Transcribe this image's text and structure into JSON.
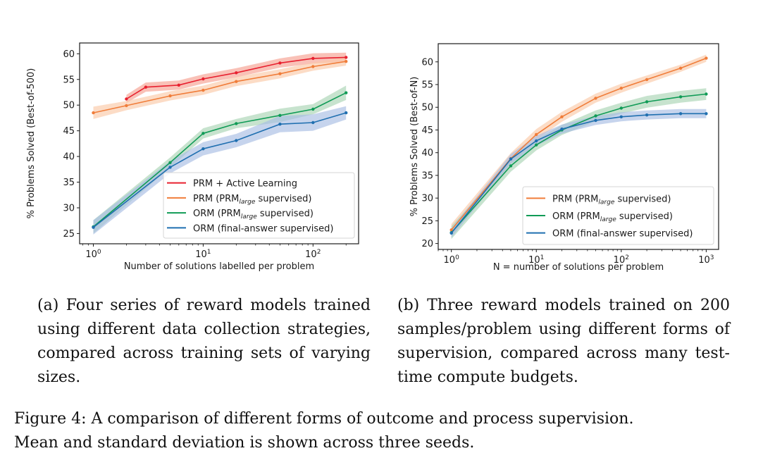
{
  "chart_data": [
    {
      "type": "line",
      "panel": "a",
      "xscale": "log",
      "xlabel": "Number of solutions labelled per problem",
      "ylabel": "% Problems Solved (Best-of-500)",
      "xlim": [
        0.75,
        260
      ],
      "ylim": [
        23,
        62.1
      ],
      "xticks": [
        {
          "value": 1,
          "base": "10",
          "exp": "0"
        },
        {
          "value": 10,
          "base": "10",
          "exp": "1"
        },
        {
          "value": 100,
          "base": "10",
          "exp": "2"
        }
      ],
      "yticks": [
        25,
        30,
        35,
        40,
        45,
        50,
        55,
        60
      ],
      "legend_position": "lower-right",
      "grid": false,
      "series": [
        {
          "name": "PRM + Active Learning",
          "label_main": "PRM + Active Learning",
          "label_sub": "",
          "label_tail": "",
          "color": "#e8202f",
          "band_color": "#f6a090",
          "x": [
            2,
            3,
            6,
            10,
            20,
            50,
            100,
            200
          ],
          "y": [
            51.2,
            53.5,
            53.9,
            55.1,
            56.3,
            58.2,
            59.1,
            59.3
          ],
          "std": [
            0.8,
            0.9,
            0.9,
            0.9,
            0.9,
            0.9,
            1.0,
            0.9
          ]
        },
        {
          "name": "PRM (PRM_large supervised)",
          "label_main": "PRM (PRM",
          "label_sub": "large",
          "label_tail": " supervised)",
          "color": "#f07d3a",
          "band_color": "#fbc9a8",
          "x": [
            1,
            2,
            5,
            10,
            20,
            50,
            100,
            200
          ],
          "y": [
            48.5,
            49.9,
            51.8,
            52.9,
            54.6,
            56.1,
            57.5,
            58.5
          ],
          "std": [
            1.2,
            0.9,
            0.9,
            0.9,
            0.9,
            0.9,
            0.8,
            0.8
          ]
        },
        {
          "name": "ORM (PRM_large supervised)",
          "label_main": "ORM (PRM",
          "label_sub": "large",
          "label_tail": " supervised)",
          "color": "#109b56",
          "band_color": "#a9d4b4",
          "x": [
            1,
            5,
            10,
            20,
            50,
            100,
            200
          ],
          "y": [
            26.3,
            38.8,
            44.5,
            46.4,
            48.0,
            49.2,
            52.4
          ],
          "std": [
            1.3,
            1.0,
            1.0,
            0.9,
            1.3,
            1.0,
            1.4
          ]
        },
        {
          "name": "ORM (final-answer supervised)",
          "label_main": "ORM (final-answer supervised)",
          "label_sub": "",
          "label_tail": "",
          "color": "#1f6fb0",
          "band_color": "#a7bde3",
          "x": [
            1,
            5,
            10,
            20,
            50,
            100,
            200
          ],
          "y": [
            26.2,
            37.9,
            41.5,
            43.1,
            46.3,
            46.6,
            48.5
          ],
          "std": [
            1.4,
            1.2,
            1.3,
            1.3,
            1.6,
            1.6,
            1.3
          ]
        }
      ]
    },
    {
      "type": "line",
      "panel": "b",
      "xscale": "log",
      "xlabel": "N = number of solutions per problem",
      "ylabel": "% Problems Solved (Best-of-N)",
      "xlim": [
        0.7,
        1400
      ],
      "ylim": [
        18.7,
        64.0
      ],
      "xticks": [
        {
          "value": 1,
          "base": "10",
          "exp": "0"
        },
        {
          "value": 10,
          "base": "10",
          "exp": "1"
        },
        {
          "value": 100,
          "base": "10",
          "exp": "2"
        },
        {
          "value": 1000,
          "base": "10",
          "exp": "3"
        }
      ],
      "yticks": [
        20,
        25,
        30,
        35,
        40,
        45,
        50,
        55,
        60
      ],
      "legend_position": "lower-right",
      "grid": false,
      "series": [
        {
          "name": "PRM (PRM_large supervised)",
          "label_main": "PRM (PRM",
          "label_sub": "large",
          "label_tail": " supervised)",
          "color": "#f07d3a",
          "band_color": "#fbc9a8",
          "x": [
            1,
            5,
            10,
            20,
            50,
            100,
            200,
            500,
            1000
          ],
          "y": [
            23.0,
            38.7,
            44.0,
            47.9,
            52.0,
            54.2,
            56.1,
            58.6,
            60.8
          ],
          "std": [
            1.3,
            1.2,
            1.2,
            1.1,
            1.0,
            1.0,
            0.9,
            0.8,
            0.8
          ]
        },
        {
          "name": "ORM (PRM_large supervised)",
          "label_main": "ORM (PRM",
          "label_sub": "large",
          "label_tail": " supervised)",
          "color": "#109b56",
          "band_color": "#a9d4b4",
          "x": [
            1,
            5,
            10,
            20,
            50,
            100,
            200,
            500,
            1000
          ],
          "y": [
            22.4,
            37.1,
            41.7,
            45.0,
            48.1,
            49.8,
            51.2,
            52.3,
            52.9
          ],
          "std": [
            1.4,
            1.3,
            1.2,
            1.1,
            1.2,
            1.2,
            1.3,
            1.3,
            1.3
          ]
        },
        {
          "name": "ORM (final-answer supervised)",
          "label_main": "ORM (final-answer supervised)",
          "label_sub": "",
          "label_tail": "",
          "color": "#1f6fb0",
          "band_color": "#a7bde3",
          "x": [
            1,
            5,
            10,
            20,
            50,
            100,
            200,
            500,
            1000
          ],
          "y": [
            22.3,
            38.6,
            42.6,
            45.2,
            47.1,
            47.9,
            48.3,
            48.6,
            48.6
          ],
          "std": [
            1.0,
            1.1,
            1.1,
            1.0,
            1.0,
            1.0,
            1.0,
            1.0,
            1.0
          ]
        }
      ]
    }
  ],
  "captions": {
    "a": "(a) Four series of reward models trained using different data collection strategies, compared across training sets of varying sizes.",
    "b": "(b) Three reward models trained on 200 samples/problem using different forms of supervision, compared across many test-time compute budgets.",
    "figure_line1": "Figure 4: A comparison of different forms of outcome and process supervision.",
    "figure_line2": "Mean and standard deviation is shown across three seeds."
  }
}
